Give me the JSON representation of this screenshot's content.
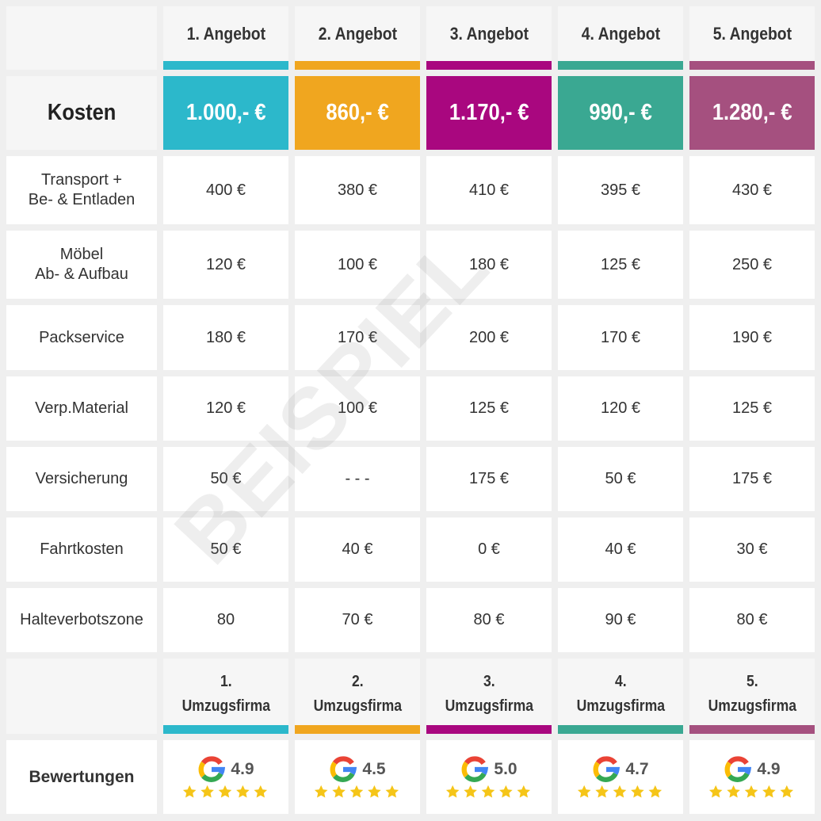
{
  "watermark": "BEISPIEL",
  "cost_label": "Kosten",
  "rating_label": "Bewertungen",
  "offers": [
    {
      "title": "1. Angebot",
      "color": "#2cb8cb",
      "total": "1.000,- €",
      "firm": [
        "1.",
        "Umzugsfirma"
      ],
      "rating": "4.9"
    },
    {
      "title": "2. Angebot",
      "color": "#f0a61f",
      "total": "860,- €",
      "firm": [
        "2.",
        "Umzugsfirma"
      ],
      "rating": "4.5"
    },
    {
      "title": "3. Angebot",
      "color": "#a9077f",
      "total": "1.170,- €",
      "firm": [
        "3.",
        "Umzugsfirma"
      ],
      "rating": "5.0"
    },
    {
      "title": "4. Angebot",
      "color": "#3aa892",
      "total": "990,- €",
      "firm": [
        "4.",
        "Umzugsfirma"
      ],
      "rating": "4.7"
    },
    {
      "title": "5. Angebot",
      "color": "#a5507f",
      "total": "1.280,- €",
      "firm": [
        "5.",
        "Umzugsfirma"
      ],
      "rating": "4.9"
    }
  ],
  "rows": [
    {
      "label": [
        "Transport +",
        "Be- & Entladen"
      ],
      "cells": [
        "400 €",
        "380 €",
        "410 €",
        "395 €",
        "430 €"
      ]
    },
    {
      "label": [
        "Möbel",
        "Ab- & Aufbau"
      ],
      "cells": [
        "120 €",
        "100 €",
        "180 €",
        "125 €",
        "250 €"
      ]
    },
    {
      "label": [
        "Packservice"
      ],
      "cells": [
        "180 €",
        "170 €",
        "200 €",
        "170 €",
        "190 €"
      ]
    },
    {
      "label": [
        "Verp.Material"
      ],
      "cells": [
        "120 €",
        "100 €",
        "125 €",
        "120 €",
        "125 €"
      ]
    },
    {
      "label": [
        "Versicherung"
      ],
      "cells": [
        "50 €",
        "- - -",
        "175 €",
        "50 €",
        "175 €"
      ]
    },
    {
      "label": [
        "Fahrtkosten"
      ],
      "cells": [
        "50 €",
        "40 €",
        "0 €",
        "40 €",
        "30 €"
      ]
    },
    {
      "label": [
        "Halteverbotszone"
      ],
      "cells": [
        "80",
        "70 €",
        "80 €",
        "90 €",
        "80 €"
      ]
    }
  ]
}
